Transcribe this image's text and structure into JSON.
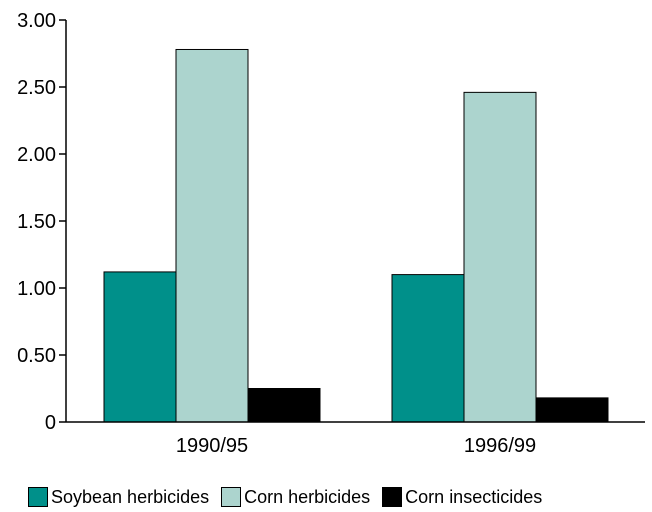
{
  "chart_data": {
    "type": "bar",
    "categories": [
      "1990/95",
      "1996/99"
    ],
    "series": [
      {
        "name": "Soybean herbicides",
        "values": [
          1.12,
          1.1
        ],
        "color": "#00908a"
      },
      {
        "name": "Corn herbicides",
        "values": [
          2.78,
          2.46
        ],
        "color": "#acd4ce"
      },
      {
        "name": "Corn insecticides",
        "values": [
          0.25,
          0.18
        ],
        "color": "#000000"
      }
    ],
    "ylim": [
      0,
      3.0
    ],
    "yticks": [
      {
        "value": 0,
        "label": "0"
      },
      {
        "value": 0.5,
        "label": "0.50"
      },
      {
        "value": 1.0,
        "label": "1.00"
      },
      {
        "value": 1.5,
        "label": "1.50"
      },
      {
        "value": 2.0,
        "label": "2.00"
      },
      {
        "value": 2.5,
        "label": "2.50"
      },
      {
        "value": 3.0,
        "label": "3.00"
      }
    ],
    "grid": false,
    "legend_position": "bottom",
    "title": "",
    "xlabel": "",
    "ylabel": ""
  }
}
